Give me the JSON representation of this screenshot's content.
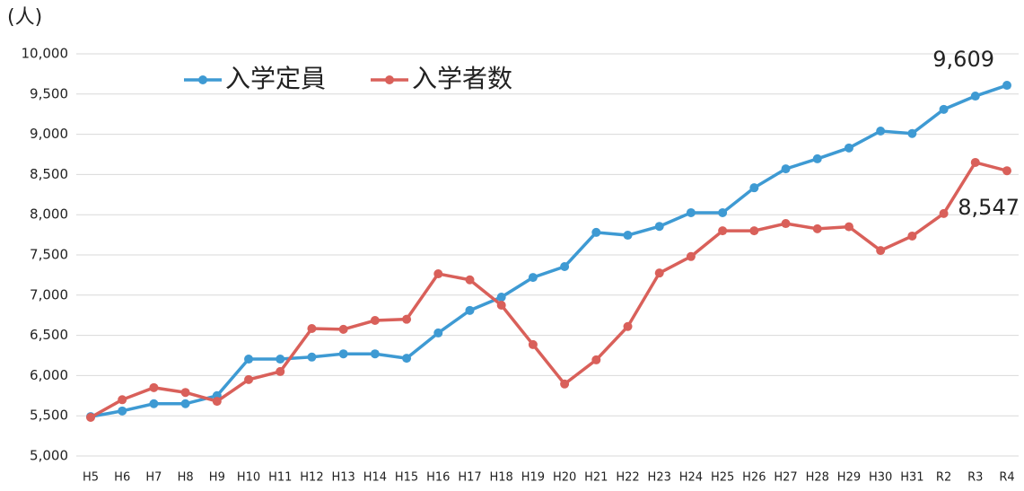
{
  "chart_data": {
    "type": "line",
    "y_label": "(人)",
    "categories": [
      "H5",
      "H6",
      "H7",
      "H8",
      "H9",
      "H10",
      "H11",
      "H12",
      "H13",
      "H14",
      "H15",
      "H16",
      "H17",
      "H18",
      "H19",
      "H20",
      "H21",
      "H22",
      "H23",
      "H24",
      "H25",
      "H26",
      "H27",
      "H28",
      "H29",
      "H30",
      "H31",
      "R2",
      "R3",
      "R4"
    ],
    "series": [
      {
        "name": "入学定員",
        "color": "#3e9ad3",
        "values": [
          5490,
          5560,
          5650,
          5650,
          5750,
          6205,
          6205,
          6230,
          6270,
          6270,
          6215,
          6530,
          6810,
          6975,
          7220,
          7355,
          7780,
          7745,
          7855,
          8025,
          8025,
          8335,
          8570,
          8695,
          8830,
          9040,
          9010,
          9310,
          9475,
          9609
        ],
        "value_labels": [
          null,
          null,
          null,
          null,
          null,
          null,
          null,
          null,
          null,
          null,
          null,
          null,
          null,
          null,
          null,
          null,
          null,
          null,
          null,
          null,
          null,
          null,
          null,
          null,
          null,
          null,
          null,
          null,
          null,
          "9,609"
        ]
      },
      {
        "name": "入学者数",
        "color": "#d9605a",
        "values": [
          5480,
          5700,
          5850,
          5790,
          5680,
          5950,
          6050,
          6585,
          6575,
          6685,
          6700,
          7265,
          7190,
          6875,
          6385,
          5895,
          6195,
          6610,
          7275,
          7480,
          7800,
          7800,
          7890,
          7825,
          7850,
          7555,
          7735,
          8015,
          8650,
          8547
        ],
        "value_labels": [
          null,
          null,
          null,
          null,
          null,
          null,
          null,
          null,
          null,
          null,
          null,
          null,
          null,
          null,
          null,
          null,
          null,
          null,
          null,
          null,
          null,
          null,
          null,
          null,
          null,
          null,
          null,
          null,
          null,
          "8,547"
        ]
      }
    ],
    "ylim": [
      5000,
      10000
    ],
    "yticks": [
      {
        "value": 5000,
        "label": "5,000"
      },
      {
        "value": 5500,
        "label": "5,500"
      },
      {
        "value": 6000,
        "label": "6,000"
      },
      {
        "value": 6500,
        "label": "6,500"
      },
      {
        "value": 7000,
        "label": "7,000"
      },
      {
        "value": 7500,
        "label": "7,500"
      },
      {
        "value": 8000,
        "label": "8,000"
      },
      {
        "value": 8500,
        "label": "8,500"
      },
      {
        "value": 9000,
        "label": "9,000"
      },
      {
        "value": 9500,
        "label": "9,500"
      },
      {
        "value": 10000,
        "label": "10,000"
      }
    ],
    "grid": true,
    "legend": "top-left"
  }
}
